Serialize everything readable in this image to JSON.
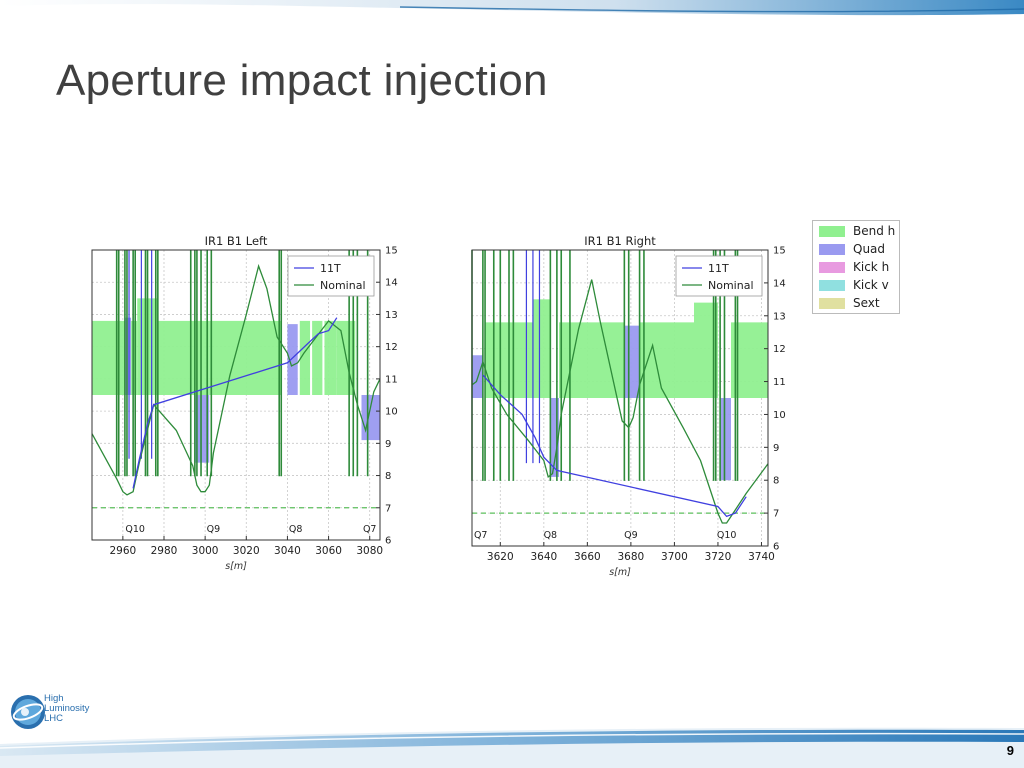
{
  "slide": {
    "title": "Aperture impact injection",
    "page_number": "9",
    "logo": {
      "line1": "High",
      "line2": "Luminosity",
      "line3": "LHC"
    }
  },
  "colors": {
    "bend_h": "#90f090",
    "quad": "#9a9af0",
    "kick_h": "#e89ae0",
    "kick_v": "#90e0e0",
    "sext": "#e0e0a0",
    "nominal": "#2e8b3a",
    "t11": "#4040e0",
    "limit": "#5cbf5c"
  },
  "element_legend": [
    {
      "label": "Bend h",
      "color_key": "bend_h"
    },
    {
      "label": "Quad",
      "color_key": "quad"
    },
    {
      "label": "Kick h",
      "color_key": "kick_h"
    },
    {
      "label": "Kick v",
      "color_key": "kick_v"
    },
    {
      "label": "Sext",
      "color_key": "sext"
    }
  ],
  "chart_data": [
    {
      "type": "line",
      "title": "IR1 B1 Left",
      "xlabel": "s[m]",
      "ylabel": "",
      "xlim": [
        2945,
        3085
      ],
      "ylim": [
        6,
        15
      ],
      "xticks": [
        2960,
        2980,
        3000,
        3020,
        3040,
        3060,
        3080
      ],
      "yticks": [
        6,
        7,
        8,
        9,
        10,
        11,
        12,
        13,
        14,
        15
      ],
      "y_axis_side": "right",
      "grid": true,
      "legend": {
        "position": "top-right",
        "entries": [
          "11T",
          "Nominal"
        ]
      },
      "reference_line": 7,
      "magnet_labels": [
        {
          "label": "Q10",
          "x": 2966
        },
        {
          "label": "Q9",
          "x": 3004
        },
        {
          "label": "Q8",
          "x": 3044
        },
        {
          "label": "Q7",
          "x": 3080
        }
      ],
      "elements": [
        {
          "kind": "bend_h",
          "x0": 2945,
          "x1": 2961,
          "y0": 10.5,
          "y1": 12.8
        },
        {
          "kind": "quad",
          "x0": 2961,
          "x1": 2964,
          "y0": 10.5,
          "y1": 12.9
        },
        {
          "kind": "bend_h",
          "x0": 2964,
          "x1": 2967,
          "y0": 10.5,
          "y1": 12.8
        },
        {
          "kind": "bend_h",
          "x0": 2967,
          "x1": 2977,
          "y0": 10.5,
          "y1": 13.5
        },
        {
          "kind": "bend_h",
          "x0": 2977,
          "x1": 2995,
          "y0": 10.5,
          "y1": 12.8
        },
        {
          "kind": "quad",
          "x0": 2995,
          "x1": 3002,
          "y0": 8.4,
          "y1": 10.5
        },
        {
          "kind": "bend_h",
          "x0": 2995,
          "x1": 3002,
          "y0": 10.5,
          "y1": 12.8
        },
        {
          "kind": "bend_h",
          "x0": 3002,
          "x1": 3037,
          "y0": 10.5,
          "y1": 12.8
        },
        {
          "kind": "quad",
          "x0": 3040,
          "x1": 3045,
          "y0": 10.5,
          "y1": 12.7
        },
        {
          "kind": "bend_h",
          "x0": 3046,
          "x1": 3051,
          "y0": 10.5,
          "y1": 12.8
        },
        {
          "kind": "bend_h",
          "x0": 3052,
          "x1": 3057,
          "y0": 10.5,
          "y1": 12.8
        },
        {
          "kind": "bend_h",
          "x0": 3058,
          "x1": 3064,
          "y0": 10.5,
          "y1": 12.8
        },
        {
          "kind": "bend_h",
          "x0": 3064,
          "x1": 3073,
          "y0": 10.5,
          "y1": 12.8
        },
        {
          "kind": "quad",
          "x0": 3076,
          "x1": 3085,
          "y0": 9.1,
          "y1": 10.5
        }
      ],
      "series": [
        {
          "name": "Nominal",
          "x": [
            2945,
            2957,
            2960,
            2962,
            2965,
            2968,
            2975,
            2986,
            2994,
            2996,
            2998,
            3000,
            3002,
            3004,
            3012,
            3020,
            3026,
            3030,
            3035,
            3040,
            3042,
            3045,
            3048,
            3060,
            3066,
            3070,
            3074,
            3078,
            3080,
            3082,
            3085
          ],
          "y": [
            9.3,
            7.9,
            7.5,
            7.4,
            7.5,
            8.4,
            10.2,
            9.4,
            8.3,
            7.7,
            7.5,
            7.5,
            7.7,
            8.7,
            11.1,
            13.0,
            14.5,
            13.8,
            12.3,
            11.8,
            11.4,
            11.5,
            11.8,
            12.8,
            12.5,
            11.2,
            10.2,
            9.4,
            10.0,
            10.6,
            11.0
          ]
        },
        {
          "name": "11T",
          "x": [
            2965,
            2968,
            2972,
            2975,
            3040,
            3045,
            3050,
            3055,
            3060,
            3064
          ],
          "y": [
            7.6,
            8.5,
            9.6,
            10.2,
            11.5,
            11.8,
            12.1,
            12.4,
            12.5,
            12.9
          ]
        }
      ],
      "aperture_limits_x": [
        2957,
        2958,
        2961,
        2962,
        2965,
        2966,
        2971,
        2972,
        2976,
        2977,
        2993,
        2995,
        2996,
        2998,
        3001,
        3003,
        3036,
        3037,
        3070,
        3072,
        3074,
        3079
      ],
      "aperture_limits_11T_x": [
        2963,
        2969,
        2974
      ]
    },
    {
      "type": "line",
      "title": "IR1 B1 Right",
      "xlabel": "s[m]",
      "ylabel": "",
      "xlim": [
        3607,
        3743
      ],
      "ylim": [
        6,
        15
      ],
      "xticks": [
        3620,
        3640,
        3660,
        3680,
        3700,
        3720,
        3740
      ],
      "yticks": [
        6,
        7,
        8,
        9,
        10,
        11,
        12,
        13,
        14,
        15
      ],
      "y_axis_side": "right",
      "grid": true,
      "legend": {
        "position": "top-right",
        "entries": [
          "11T",
          "Nominal"
        ]
      },
      "reference_line": 7,
      "magnet_labels": [
        {
          "label": "Q7",
          "x": 3611
        },
        {
          "label": "Q8",
          "x": 3643
        },
        {
          "label": "Q9",
          "x": 3680
        },
        {
          "label": "Q10",
          "x": 3724
        }
      ],
      "elements": [
        {
          "kind": "quad",
          "x0": 3607,
          "x1": 3612,
          "y0": 10.5,
          "y1": 11.8
        },
        {
          "kind": "bend_h",
          "x0": 3613,
          "x1": 3635,
          "y0": 10.5,
          "y1": 12.8
        },
        {
          "kind": "bend_h",
          "x0": 3635,
          "x1": 3643,
          "y0": 10.5,
          "y1": 13.5
        },
        {
          "kind": "quad",
          "x0": 3643,
          "x1": 3647,
          "y0": 8.1,
          "y1": 10.5
        },
        {
          "kind": "bend_h",
          "x0": 3647,
          "x1": 3677,
          "y0": 10.5,
          "y1": 12.8
        },
        {
          "kind": "quad",
          "x0": 3677,
          "x1": 3684,
          "y0": 10.5,
          "y1": 12.7
        },
        {
          "kind": "bend_h",
          "x0": 3684,
          "x1": 3709,
          "y0": 10.5,
          "y1": 12.8
        },
        {
          "kind": "bend_h",
          "x0": 3709,
          "x1": 3720,
          "y0": 10.5,
          "y1": 13.4
        },
        {
          "kind": "quad",
          "x0": 3721,
          "x1": 3726,
          "y0": 8.0,
          "y1": 10.5
        },
        {
          "kind": "bend_h",
          "x0": 3726,
          "x1": 3743,
          "y0": 10.5,
          "y1": 12.8
        }
      ],
      "series": [
        {
          "name": "Nominal",
          "x": [
            3607,
            3609,
            3612,
            3616,
            3623,
            3633,
            3640,
            3642,
            3644,
            3646,
            3648,
            3656,
            3662,
            3666,
            3674,
            3676,
            3679,
            3681,
            3684,
            3690,
            3694,
            3704,
            3712,
            3718,
            3720,
            3722,
            3724,
            3727,
            3733,
            3743
          ],
          "y": [
            10.9,
            11.0,
            11.6,
            10.8,
            10.0,
            9.2,
            8.6,
            8.1,
            8.2,
            9.0,
            10.0,
            12.6,
            14.1,
            12.8,
            10.4,
            9.8,
            9.6,
            9.9,
            10.9,
            12.1,
            10.8,
            9.6,
            8.6,
            7.4,
            7.0,
            6.7,
            6.7,
            7.0,
            7.6,
            8.5
          ]
        },
        {
          "name": "11T",
          "x": [
            3612,
            3620,
            3630,
            3636,
            3640,
            3646,
            3720,
            3724,
            3728,
            3733
          ],
          "y": [
            11.2,
            10.6,
            10.0,
            9.3,
            8.7,
            8.3,
            7.2,
            6.9,
            7.0,
            7.5
          ]
        }
      ],
      "aperture_limits_x": [
        3607,
        3612,
        3613,
        3617,
        3620,
        3624,
        3626,
        3643,
        3646,
        3648,
        3652,
        3677,
        3679,
        3684,
        3686,
        3718,
        3719,
        3721,
        3723,
        3728,
        3729
      ],
      "aperture_limits_11T_x": [
        3632,
        3635,
        3638
      ]
    }
  ]
}
